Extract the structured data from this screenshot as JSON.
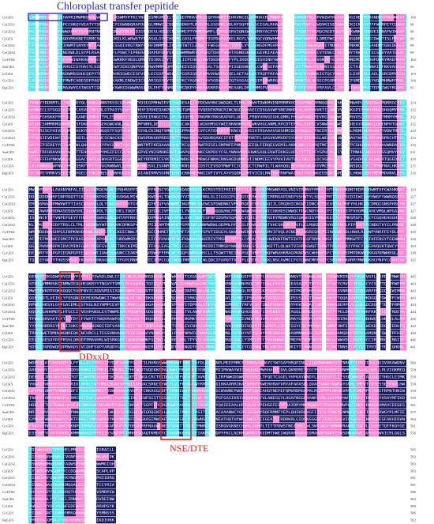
{
  "figure": {
    "title": "Chloroplast transfer pepitide",
    "motifs": [
      {
        "label": "DDxxD"
      },
      {
        "label": "NSE/DTE"
      }
    ]
  },
  "sequence_names": [
    "UsGES",
    "CaGES1",
    "CaGES2",
    "GjGES",
    "CeGES1",
    "CeGES2",
    "CoTPS4",
    "SmGES",
    "CrGES",
    "GcGES",
    "RgGES"
  ],
  "blocks": [
    {
      "name": "block-1",
      "end_positions": [
        100,
        98,
        98,
        98,
        99,
        99,
        102,
        96,
        103,
        100,
        95
      ]
    },
    {
      "name": "block-2",
      "end_positions": [
        214,
        212,
        212,
        212,
        213,
        213,
        215,
        211,
        219,
        215,
        210
      ]
    },
    {
      "name": "block-3",
      "end_positions": [
        329,
        327,
        327,
        327,
        328,
        328,
        330,
        326,
        333,
        330,
        325
      ]
    },
    {
      "name": "block-4",
      "end_positions": [
        445,
        443,
        443,
        443,
        444,
        444,
        446,
        442,
        449,
        446,
        441
      ]
    },
    {
      "name": "block-5",
      "end_positions": [
        560,
        558,
        558,
        558,
        559,
        559,
        561,
        557,
        564,
        561,
        556
      ]
    },
    {
      "name": "block-6",
      "end_positions": [
        585,
        583,
        583,
        583,
        581,
        581,
        586,
        582,
        589,
        586,
        582
      ]
    }
  ],
  "colors": {
    "identical": "#1a1a5e",
    "conserved": "#ff7fcf",
    "similar": "#56e0ea",
    "highlight_box": "#d32222",
    "title_box": "#3a2aa8"
  }
}
